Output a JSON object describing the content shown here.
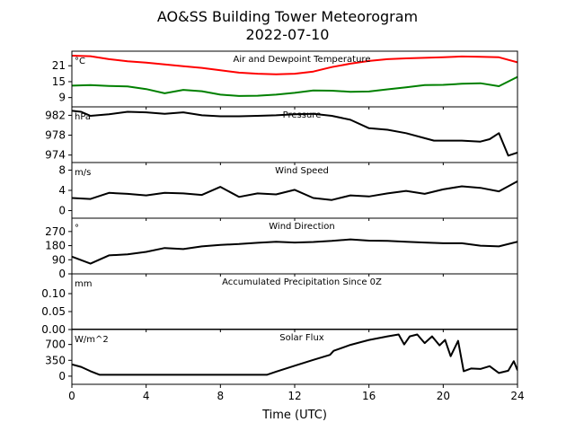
{
  "figure": {
    "title_line1": "AO&SS Building Tower Meteorogram",
    "title_line2": "2022-07-10",
    "xlabel": "Time (UTC)"
  },
  "chart_data": [
    {
      "type": "line",
      "title": "Air and Dewpoint Temperature",
      "unit_label": "°C",
      "xlim": [
        0,
        24
      ],
      "ylim": [
        5.5,
        26.5
      ],
      "yticks": [
        9,
        15,
        21
      ],
      "ytick_labels": [
        "9",
        "15",
        "21"
      ],
      "series": [
        {
          "color": "#ff0000",
          "x": [
            0,
            1,
            2,
            3,
            4,
            5,
            6,
            7,
            8,
            9,
            10,
            11,
            12,
            13,
            14,
            15,
            16,
            17,
            18,
            19,
            20,
            21,
            22,
            23,
            24
          ],
          "y": [
            24.8,
            24.6,
            23.5,
            22.7,
            22.2,
            21.5,
            20.8,
            20.2,
            19.3,
            18.4,
            18.0,
            17.8,
            18.0,
            18.8,
            20.5,
            21.8,
            22.8,
            23.5,
            23.8,
            24.0,
            24.2,
            24.5,
            24.4,
            24.2,
            22.3
          ]
        },
        {
          "color": "#008000",
          "x": [
            0,
            1,
            2,
            3,
            4,
            5,
            6,
            7,
            8,
            9,
            10,
            11,
            12,
            13,
            14,
            15,
            16,
            17,
            18,
            19,
            20,
            21,
            22,
            23,
            24
          ],
          "y": [
            13.5,
            13.7,
            13.4,
            13.2,
            12.2,
            10.6,
            11.9,
            11.4,
            10.1,
            9.6,
            9.7,
            10.1,
            10.8,
            11.7,
            11.6,
            11.2,
            11.3,
            12.1,
            12.9,
            13.7,
            13.8,
            14.2,
            14.4,
            13.3,
            16.8
          ]
        }
      ]
    },
    {
      "type": "line",
      "title": "Pressure",
      "unit_label": "hPa",
      "xlim": [
        0,
        24
      ],
      "ylim": [
        972.5,
        983.7
      ],
      "yticks": [
        974,
        978,
        982
      ],
      "ytick_labels": [
        "974",
        "978",
        "982"
      ],
      "series": [
        {
          "color": "#000000",
          "x": [
            0,
            0.5,
            1,
            2,
            3,
            4,
            5,
            6,
            7,
            8,
            9,
            10,
            11,
            12,
            13,
            14,
            15,
            16,
            17,
            18,
            19,
            19.5,
            20,
            21,
            22,
            22.5,
            23,
            23.5,
            24
          ],
          "y": [
            982.9,
            982.7,
            981.9,
            982.2,
            982.7,
            982.6,
            982.3,
            982.6,
            982.0,
            981.8,
            981.8,
            981.9,
            982.0,
            982.2,
            982.3,
            981.9,
            981.1,
            979.4,
            979.1,
            978.4,
            977.4,
            976.9,
            976.9,
            976.9,
            976.7,
            977.2,
            978.4,
            973.9,
            974.5
          ]
        }
      ]
    },
    {
      "type": "line",
      "title": "Wind Speed",
      "unit_label": "m/s",
      "xlim": [
        0,
        24
      ],
      "ylim": [
        -1.5,
        9.5
      ],
      "yticks": [
        0,
        4,
        8
      ],
      "ytick_labels": [
        "0",
        "4",
        "8"
      ],
      "series": [
        {
          "color": "#000000",
          "x": [
            0,
            1,
            2,
            3,
            4,
            5,
            6,
            7,
            8,
            9,
            10,
            11,
            12,
            13,
            14,
            15,
            16,
            17,
            18,
            19,
            20,
            21,
            22,
            23,
            24
          ],
          "y": [
            2.5,
            2.3,
            3.5,
            3.3,
            3.0,
            3.5,
            3.4,
            3.1,
            4.7,
            2.7,
            3.4,
            3.2,
            4.1,
            2.5,
            2.1,
            3.0,
            2.8,
            3.4,
            3.9,
            3.3,
            4.2,
            4.8,
            4.5,
            3.8,
            5.8
          ]
        }
      ]
    },
    {
      "type": "line",
      "title": "Wind Direction",
      "unit_label": "°",
      "xlim": [
        0,
        24
      ],
      "ylim": [
        0,
        355
      ],
      "yticks": [
        0,
        90,
        180,
        270
      ],
      "ytick_labels": [
        "0",
        "90",
        "180",
        "270"
      ],
      "series": [
        {
          "color": "#000000",
          "x": [
            0,
            1,
            2,
            3,
            4,
            5,
            6,
            7,
            8,
            9,
            10,
            11,
            12,
            13,
            14,
            15,
            16,
            17,
            18,
            19,
            20,
            21,
            22,
            23,
            24
          ],
          "y": [
            110,
            65,
            118,
            125,
            140,
            165,
            158,
            175,
            185,
            190,
            198,
            205,
            200,
            203,
            210,
            220,
            212,
            210,
            205,
            200,
            195,
            195,
            180,
            175,
            205
          ]
        }
      ]
    },
    {
      "type": "line",
      "title": "Accumulated Precipitation Since 0Z",
      "unit_label": "mm",
      "xlim": [
        0,
        24
      ],
      "ylim": [
        0,
        0.155
      ],
      "yticks": [
        0,
        0.05,
        0.1
      ],
      "ytick_labels": [
        "0.00",
        "0.05",
        "0.10"
      ],
      "series": [
        {
          "color": "#000000",
          "x": [
            0,
            24
          ],
          "y": [
            0,
            0
          ]
        }
      ]
    },
    {
      "type": "line",
      "title": "Solar Flux",
      "unit_label": "W/m^2",
      "xlim": [
        0,
        24
      ],
      "ylim": [
        -180,
        1030
      ],
      "yticks": [
        0,
        350,
        700
      ],
      "ytick_labels": [
        "0",
        "350",
        "700"
      ],
      "series": [
        {
          "color": "#000000",
          "x": [
            0,
            0.5,
            1,
            1.5,
            2,
            4,
            6,
            8,
            10,
            10.5,
            11,
            12,
            13,
            13.9,
            14.1,
            15,
            16,
            17,
            17.6,
            17.9,
            18.2,
            18.6,
            19,
            19.4,
            19.8,
            20.1,
            20.4,
            20.8,
            21.1,
            21.5,
            22,
            22.5,
            23,
            23.5,
            23.8,
            24
          ],
          "y": [
            260,
            205,
            110,
            30,
            30,
            30,
            30,
            30,
            30,
            30,
            100,
            230,
            360,
            470,
            560,
            690,
            800,
            880,
            920,
            700,
            880,
            920,
            730,
            880,
            680,
            800,
            440,
            780,
            110,
            170,
            160,
            220,
            70,
            120,
            330,
            130
          ]
        }
      ]
    }
  ],
  "xaxis": {
    "ticks": [
      0,
      4,
      8,
      12,
      16,
      20,
      24
    ],
    "tick_labels": [
      "0",
      "4",
      "8",
      "12",
      "16",
      "20",
      "24"
    ]
  }
}
